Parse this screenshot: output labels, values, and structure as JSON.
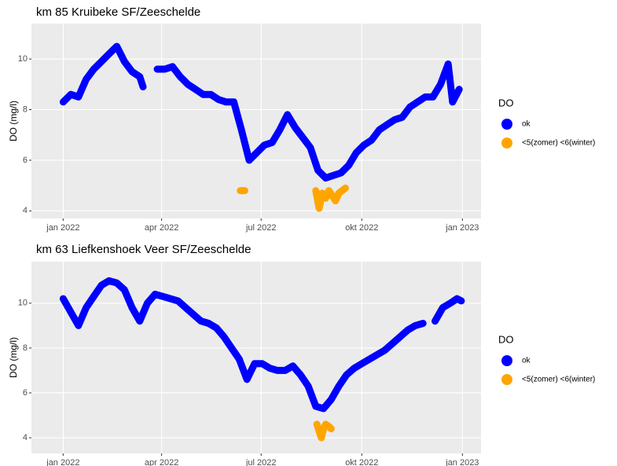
{
  "chart_data": [
    {
      "type": "line",
      "title": "km 85 Kruibeke SF/Zeeschelde",
      "y_label": "DO (mg/l)",
      "legend_title": "DO",
      "xlim": [
        -29,
        382
      ],
      "ylim": [
        3.7,
        11.4
      ],
      "yticks": [
        4,
        6,
        8,
        10
      ],
      "xticks": [
        {
          "value": 0,
          "label": "jan 2022"
        },
        {
          "value": 90,
          "label": "apr 2022"
        },
        {
          "value": 181,
          "label": "jul 2022"
        },
        {
          "value": 273,
          "label": "okt 2022"
        },
        {
          "value": 365,
          "label": "jan 2023"
        }
      ],
      "series": [
        {
          "name": "ok",
          "color": "#0000ff",
          "x": [
            0,
            7,
            14,
            21,
            28,
            35,
            42,
            49,
            56,
            63,
            70,
            73,
            80,
            86,
            93,
            100,
            107,
            114,
            121,
            128,
            135,
            142,
            149,
            156,
            163,
            170,
            177,
            184,
            191,
            198,
            205,
            212,
            219,
            226,
            233,
            240,
            247,
            254,
            261,
            268,
            275,
            282,
            289,
            296,
            303,
            310,
            317,
            324,
            331,
            338,
            345,
            352,
            356,
            362
          ],
          "values": [
            8.3,
            8.6,
            8.5,
            9.2,
            9.6,
            9.9,
            10.2,
            10.5,
            9.9,
            9.5,
            9.3,
            8.9,
            null,
            9.6,
            9.6,
            9.7,
            9.3,
            9.0,
            8.8,
            8.6,
            8.6,
            8.4,
            8.3,
            8.3,
            7.2,
            6.0,
            6.3,
            6.6,
            6.7,
            7.2,
            7.8,
            7.3,
            6.9,
            6.5,
            5.6,
            5.3,
            5.4,
            5.5,
            5.8,
            6.3,
            6.6,
            6.8,
            7.2,
            7.4,
            7.6,
            7.7,
            8.1,
            8.3,
            8.5,
            8.5,
            9.0,
            9.8,
            8.3,
            8.8
          ]
        },
        {
          "name": "<5(zomer) <6(winter)",
          "color": "#ffa500",
          "x": [
            162,
            166,
            200,
            231,
            234,
            237,
            240,
            243,
            246,
            249,
            252,
            255,
            258
          ],
          "values": [
            4.8,
            4.8,
            null,
            4.8,
            4.1,
            4.7,
            4.5,
            4.8,
            4.6,
            4.4,
            4.7,
            4.8,
            4.9
          ]
        }
      ]
    },
    {
      "type": "line",
      "title": "km 63 Liefkenshoek Veer SF/Zeeschelde",
      "y_label": "DO (mg/l)",
      "legend_title": "DO",
      "xlim": [
        -29,
        382
      ],
      "ylim": [
        3.3,
        11.85
      ],
      "yticks": [
        4,
        6,
        8,
        10
      ],
      "xticks": [
        {
          "value": 0,
          "label": "jan 2022"
        },
        {
          "value": 90,
          "label": "apr 2022"
        },
        {
          "value": 181,
          "label": "jul 2022"
        },
        {
          "value": 273,
          "label": "okt 2022"
        },
        {
          "value": 365,
          "label": "jan 2023"
        }
      ],
      "series": [
        {
          "name": "ok",
          "color": "#0000ff",
          "x": [
            0,
            7,
            14,
            21,
            28,
            35,
            42,
            49,
            56,
            63,
            70,
            77,
            84,
            91,
            98,
            105,
            112,
            119,
            126,
            133,
            140,
            147,
            154,
            161,
            168,
            175,
            182,
            189,
            196,
            203,
            210,
            217,
            224,
            231,
            238,
            245,
            252,
            259,
            266,
            273,
            280,
            287,
            294,
            301,
            308,
            315,
            322,
            329,
            335,
            340,
            347,
            354,
            360,
            364
          ],
          "values": [
            10.2,
            9.6,
            9.0,
            9.8,
            10.3,
            10.8,
            11.0,
            10.9,
            10.6,
            9.8,
            9.2,
            10.0,
            10.4,
            10.3,
            10.2,
            10.1,
            9.8,
            9.5,
            9.2,
            9.1,
            8.9,
            8.5,
            8.0,
            7.5,
            6.6,
            7.3,
            7.3,
            7.1,
            7.0,
            7.0,
            7.2,
            6.8,
            6.3,
            5.4,
            5.3,
            5.7,
            6.3,
            6.8,
            7.1,
            7.3,
            7.5,
            7.7,
            7.9,
            8.2,
            8.5,
            8.8,
            9.0,
            9.1,
            null,
            9.2,
            9.8,
            10.0,
            10.2,
            10.1
          ]
        },
        {
          "name": "<5(zomer) <6(winter)",
          "color": "#ffa500",
          "x": [
            232,
            234,
            236,
            238,
            240,
            243,
            245
          ],
          "values": [
            4.6,
            4.3,
            4.0,
            4.4,
            4.6,
            4.5,
            4.4
          ]
        }
      ]
    }
  ]
}
